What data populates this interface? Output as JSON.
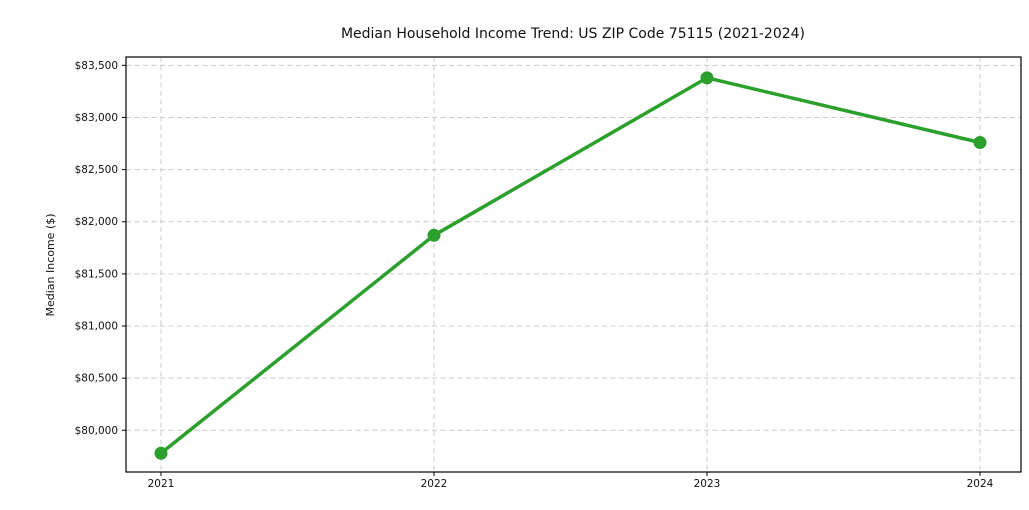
{
  "figure": {
    "background": "#ffffff"
  },
  "chart_data": {
    "type": "line",
    "title": "Median Household Income Trend: US ZIP Code 75115 (2021-2024)",
    "xlabel": "",
    "ylabel": "Median Income ($)",
    "x": [
      2021,
      2022,
      2023,
      2024
    ],
    "x_tick_labels": [
      "2021",
      "2022",
      "2023",
      "2024"
    ],
    "series": [
      {
        "name": "Median Household Income",
        "values": [
          79780,
          81870,
          83380,
          82760
        ]
      }
    ],
    "y_ticks": [
      80000,
      80500,
      81000,
      81500,
      82000,
      82500,
      83000,
      83500
    ],
    "y_tick_labels": [
      "$80,000",
      "$80,500",
      "$81,000",
      "$81,500",
      "$82,000",
      "$82,500",
      "$83,000",
      "$83,500"
    ],
    "ylim": [
      79600,
      83580
    ],
    "grid": "both",
    "grid_style": "dashed",
    "legend": "none",
    "colors": {
      "line": "#2ca02c",
      "marker": "#2ca02c",
      "grid": "#cccccc",
      "spine": "#000000",
      "text": "#111111",
      "background": "#ffffff"
    }
  }
}
